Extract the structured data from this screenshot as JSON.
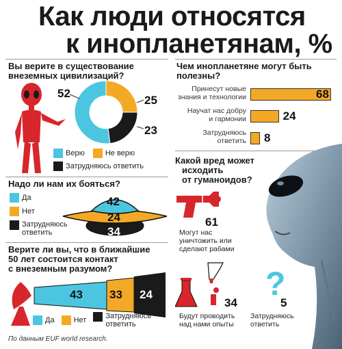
{
  "title_line1": "Как люди относятся",
  "title_line2": "к инопланетянам, %",
  "colors": {
    "orange": "#f4a926",
    "cyan": "#4cc6e0",
    "black": "#1a1a1a",
    "red": "#d7262c"
  },
  "chart_data": [
    {
      "type": "pie",
      "title": "Вы верите в существование внеземных цивилизаций?",
      "categories": [
        "Верю",
        "Не верю",
        "Затрудняюсь ответить"
      ],
      "values": [
        52,
        25,
        23
      ],
      "labels": [
        "52",
        "25",
        "23"
      ],
      "legend": "bottom"
    },
    {
      "type": "bar",
      "title": "Чем инопланетяне могут быть полезны?",
      "categories": [
        "Принесут новые знания и технологии",
        "Научат нас добру и гармонии",
        "Затрудняюсь ответить"
      ],
      "values": [
        68,
        24,
        8
      ],
      "xlim": [
        0,
        68
      ]
    },
    {
      "type": "bar",
      "title": "Надо ли нам их бояться?",
      "categories": [
        "Да",
        "Нет",
        "Затрудняюсь ответить"
      ],
      "values": [
        42,
        24,
        34
      ],
      "legend": "left"
    },
    {
      "type": "bar",
      "title": "Какой вред может исходить от гуманоидов?",
      "categories": [
        "Могут нас уничтожить или сделают рабами",
        "Будут проводить над нами опыты",
        "Затрудняюсь ответить"
      ],
      "values": [
        61,
        34,
        5
      ]
    },
    {
      "type": "bar",
      "title": "Верите ли вы, что в ближайшие 50 лет состоится контакт с внеземным разумом?",
      "categories": [
        "Да",
        "Нет",
        "Затрудняюсь ответить"
      ],
      "values": [
        43,
        33,
        24
      ],
      "legend": "bottom"
    }
  ],
  "q1": {
    "title1": "Вы верите в существование",
    "title2": "внеземных цивилизаций?",
    "legend": [
      "Верю",
      "Не верю",
      "Затрудняюсь ответить"
    ]
  },
  "q2": {
    "title1": "Чем инопланетяне могут быть",
    "title2": "полезны?",
    "labels1": [
      "Принесут новые",
      "Научат нас добру",
      "Затрудняюсь"
    ],
    "labels2": [
      "знания и технологии",
      "и гармонии",
      "ответить"
    ]
  },
  "q3": {
    "title": "Надо ли нам их бояться?",
    "legend": [
      "Да",
      "Нет",
      "Затрудняюсь"
    ],
    "legend_cont": "ответить"
  },
  "q4": {
    "title1": "Какой вред может",
    "title2": "исходить",
    "title3": "от гуманоидов?",
    "harm1": [
      "Могут нас",
      "уничтожить или",
      "сделают рабами"
    ],
    "harm2": [
      "Будут проводить",
      "над нами опыты"
    ],
    "harm3": [
      "Затрудняюсь",
      "ответить"
    ],
    "question_mark": "?"
  },
  "q5": {
    "title1": "Верите ли вы, что в ближайшие",
    "title2": "50 лет состоится контакт",
    "title3": "с внеземным разумом?",
    "legend": [
      "Да",
      "Нет",
      "Затрудняюсь"
    ],
    "legend_cont": "ответить"
  },
  "source": "По данным EUF world research."
}
